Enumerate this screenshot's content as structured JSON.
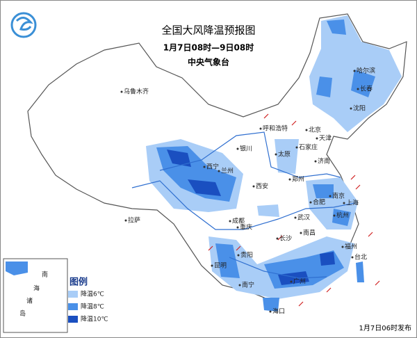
{
  "header": {
    "title": "全国大风降温预报图",
    "period": "1月7日08时—9日08时",
    "agency": "中央气象台"
  },
  "cities": [
    "乌鲁木齐",
    "哈尔滨",
    "长春",
    "沈阳",
    "呼和浩特",
    "北京",
    "天津",
    "石家庄",
    "银川",
    "太原",
    "济南",
    "西宁",
    "兰州",
    "郑州",
    "西安",
    "合肥",
    "南京",
    "上海",
    "杭州",
    "武汉",
    "成都",
    "拉萨",
    "重庆",
    "长沙",
    "南昌",
    "福州",
    "贵阳",
    "昆明",
    "南宁",
    "广州",
    "台北",
    "海口"
  ],
  "inset": {
    "labels": [
      "南",
      "海",
      "诸",
      "岛"
    ]
  },
  "legend": {
    "title": "图例",
    "items": [
      "降温6℃",
      "降温8℃",
      "降温10℃"
    ]
  },
  "footer": "1月7日06时发布"
}
